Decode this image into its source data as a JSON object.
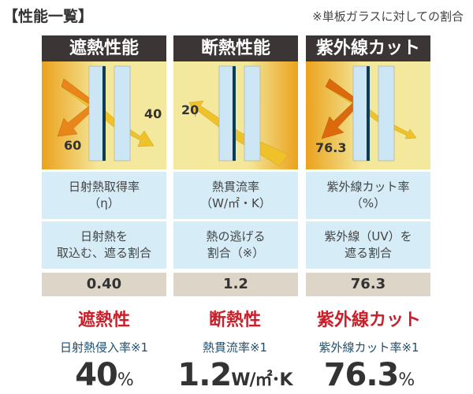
{
  "title": "【性能一覧】",
  "note": "※単板ガラスに対しての割合",
  "columns": [
    {
      "header": "遮熱性能",
      "num_a": "60",
      "num_b": "40",
      "metric": [
        "日射熱取得率",
        "（η）"
      ],
      "desc": [
        "日射熱を",
        "取込む、遮る割合"
      ],
      "value": "0.40"
    },
    {
      "header": "断熱性能",
      "num_a": "20",
      "metric": [
        "熱貫流率",
        "（W/㎡・K）"
      ],
      "desc": [
        "熱の逃げる",
        "割合（※）"
      ],
      "value": "1.2"
    },
    {
      "header": "紫外線カット",
      "num_a": "76.3",
      "metric": [
        "紫外線カット率",
        "（%）"
      ],
      "desc": [
        "紫外線（UV）を",
        "遮る割合"
      ],
      "value": "76.3"
    }
  ],
  "summary": [
    {
      "label": "遮熱性",
      "metric": "日射熱侵入率※1",
      "value": "40",
      "unit": "%"
    },
    {
      "label": "断熱性",
      "metric": "熱貫流率※1",
      "value": "1.2",
      "unit": "W/㎡･K"
    },
    {
      "label": "紫外線カット",
      "metric": "紫外線カット率※1",
      "value": "76.3",
      "unit": "%"
    }
  ],
  "colors": {
    "header": "#3b3535",
    "accent_red": "#c8202a",
    "row_blue": "#d6ecf6",
    "value_beige": "#ddd6c8",
    "arrow_orange": "#e8821a",
    "arrow_yellow": "#f2d21e"
  }
}
